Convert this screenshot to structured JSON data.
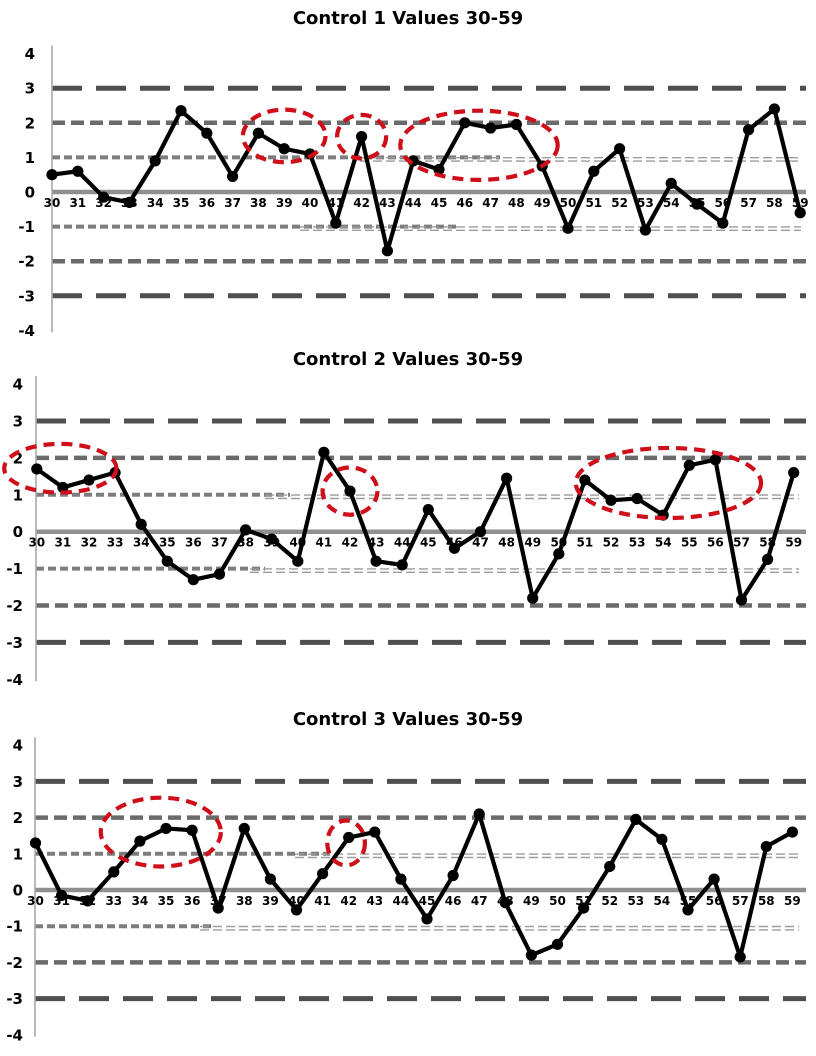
{
  "page": {
    "background": "#ffffff"
  },
  "colors": {
    "series_line": "#000000",
    "marker": "#000000",
    "annotation_red": "#ce0e18",
    "grid_3sd": "#4f4f4f",
    "grid_2sd": "#6a6a6a",
    "grid_1sd": "#7d7d7d",
    "grid_1sd_thin": "#9c9c9c",
    "grid_mean": "#8f8f8f",
    "axis": "#a8a8a8",
    "text": "#000000"
  },
  "chart_data": [
    {
      "type": "line",
      "title": "Control 1 Values 30-59",
      "categories": [
        30,
        31,
        32,
        33,
        34,
        35,
        36,
        37,
        38,
        39,
        40,
        41,
        42,
        43,
        44,
        45,
        46,
        47,
        48,
        49,
        50,
        51,
        52,
        53,
        54,
        55,
        56,
        57,
        58,
        59
      ],
      "values": [
        0.5,
        0.6,
        -0.15,
        -0.3,
        0.9,
        2.35,
        1.7,
        0.45,
        1.7,
        1.25,
        1.1,
        -0.9,
        1.6,
        -1.7,
        0.9,
        0.65,
        2.0,
        1.85,
        1.95,
        0.75,
        -1.05,
        0.6,
        1.25,
        -1.1,
        0.25,
        -0.35,
        -0.9,
        1.8,
        2.4,
        -0.6
      ],
      "ylim": [
        -4,
        4
      ],
      "yticks": [
        4,
        3,
        2,
        1,
        0,
        -1,
        -2,
        -3,
        -4
      ],
      "grid": "horizontal dashed lines at +/-1, +/-2, +/-3 SD; solid mean line at 0",
      "legend": "none",
      "annotations": [
        {
          "shape": "dashed-ellipse",
          "cx": 39.0,
          "cy": 1.62,
          "rx": 1.6,
          "ry": 0.76
        },
        {
          "shape": "dashed-ellipse",
          "cx": 42.0,
          "cy": 1.6,
          "rx": 0.95,
          "ry": 0.63
        },
        {
          "shape": "dashed-ellipse",
          "cx": 46.55,
          "cy": 1.35,
          "rx": 3.05,
          "ry": 1.0
        }
      ]
    },
    {
      "type": "line",
      "title": "Control 2 Values 30-59",
      "categories": [
        30,
        31,
        32,
        33,
        34,
        35,
        36,
        37,
        38,
        39,
        40,
        41,
        42,
        43,
        44,
        45,
        46,
        47,
        48,
        49,
        50,
        51,
        52,
        53,
        54,
        55,
        56,
        57,
        58,
        59
      ],
      "values": [
        1.7,
        1.2,
        1.4,
        1.6,
        0.2,
        -0.8,
        -1.3,
        -1.15,
        0.05,
        -0.2,
        -0.8,
        2.15,
        1.1,
        -0.8,
        -0.9,
        0.6,
        -0.45,
        0.0,
        1.45,
        -1.8,
        -0.6,
        1.4,
        0.85,
        0.9,
        0.45,
        1.8,
        1.95,
        -1.85,
        -0.75,
        1.6
      ],
      "ylim": [
        -4,
        4
      ],
      "yticks": [
        4,
        3,
        2,
        1,
        0,
        -1,
        -2,
        -3,
        -4
      ],
      "grid": "horizontal dashed lines at +/-1, +/-2, +/-3 SD; solid mean line at 0",
      "legend": "none",
      "annotations": [
        {
          "shape": "dashed-ellipse",
          "cx": 30.9,
          "cy": 1.72,
          "rx": 2.15,
          "ry": 0.66
        },
        {
          "shape": "dashed-ellipse",
          "cx": 42.0,
          "cy": 1.1,
          "rx": 1.05,
          "ry": 0.64
        },
        {
          "shape": "dashed-ellipse",
          "cx": 54.2,
          "cy": 1.32,
          "rx": 3.55,
          "ry": 0.95
        }
      ]
    },
    {
      "type": "line",
      "title": "Control 3 Values 30-59",
      "categories": [
        30,
        31,
        32,
        33,
        34,
        35,
        36,
        37,
        38,
        39,
        40,
        41,
        42,
        43,
        44,
        45,
        46,
        47,
        48,
        49,
        50,
        51,
        52,
        53,
        54,
        55,
        56,
        57,
        58,
        59
      ],
      "values": [
        1.3,
        -0.15,
        -0.3,
        0.5,
        1.35,
        1.7,
        1.65,
        -0.5,
        1.7,
        0.3,
        -0.55,
        0.45,
        1.45,
        1.6,
        0.3,
        -0.8,
        0.4,
        2.1,
        -0.35,
        -1.8,
        -1.5,
        -0.5,
        0.65,
        1.95,
        1.4,
        -0.55,
        0.3,
        -1.85,
        1.2,
        1.6
      ],
      "ylim": [
        -4,
        4
      ],
      "yticks": [
        4,
        3,
        2,
        1,
        0,
        -1,
        -2,
        -3,
        -4
      ],
      "grid": "horizontal dashed lines at +/-1, +/-2, +/-3 SD; solid mean line at 0",
      "legend": "none",
      "annotations": [
        {
          "shape": "dashed-ellipse",
          "cx": 34.8,
          "cy": 1.6,
          "rx": 2.3,
          "ry": 0.95
        },
        {
          "shape": "dashed-ellipse",
          "cx": 41.9,
          "cy": 1.3,
          "rx": 0.72,
          "ry": 0.62
        }
      ]
    }
  ]
}
